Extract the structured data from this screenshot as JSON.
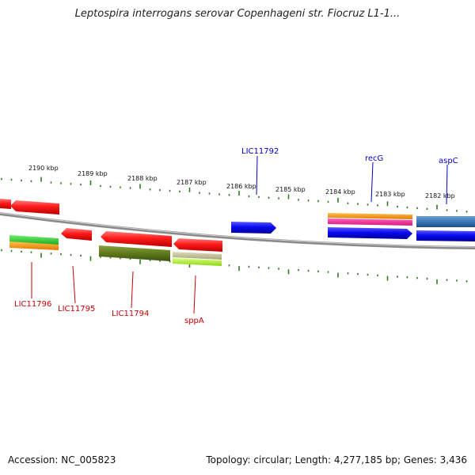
{
  "title": "Leptospira interrogans serovar Copenhageni str. Fiocruz L1-1...",
  "footer": {
    "accession": "Accession: NC_005823",
    "summary": "Topology: circular; Length: 4,277,185 bp; Genes: 3,436"
  },
  "scale": {
    "labels": [
      "2190 kbp",
      "2189 kbp",
      "2188 kbp",
      "2187 kbp",
      "2186 kbp",
      "2185 kbp",
      "2184 kbp",
      "2183 kbp",
      "2182 kbp"
    ]
  },
  "colors": {
    "tick": "#2e7d1e",
    "backbone": "#8a8a8a",
    "red": "#ee1111",
    "blue": "#0a0ae8",
    "label_red": "#cc0000",
    "label_blue": "#0000cc"
  },
  "genes": {
    "top_labels": [
      "LIC11792",
      "recG",
      "aspC"
    ],
    "bottom_labels": [
      "LIC11796",
      "LIC11795",
      "LIC11794",
      "sppA"
    ]
  }
}
